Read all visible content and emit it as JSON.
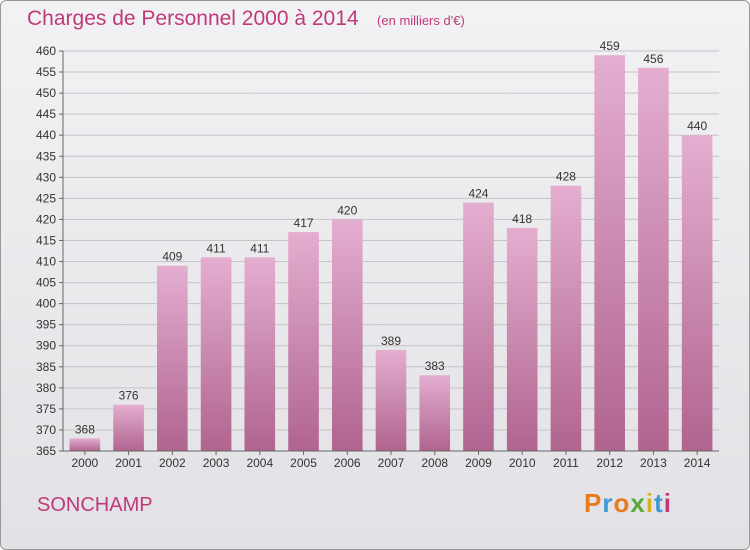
{
  "header": {
    "title": "Charges de Personnel 2000 à 2014",
    "unit": "(en milliers d'€)"
  },
  "footer": {
    "location": "SONCHAMP",
    "brand": "Proxiti",
    "brand_colors": [
      "#e87b1c",
      "#3c9ad6",
      "#e87b1c",
      "#5aa83a",
      "#d6b21c",
      "#3c9ad6",
      "#c03a7a"
    ]
  },
  "colors": {
    "bar_top": "#e4aed0",
    "bar_bottom": "#b0648f",
    "title": "#c03a7a"
  },
  "chart_data": {
    "type": "bar",
    "title": "Charges de Personnel 2000 à 2014",
    "categories": [
      "2000",
      "2001",
      "2002",
      "2003",
      "2004",
      "2005",
      "2006",
      "2007",
      "2008",
      "2009",
      "2010",
      "2011",
      "2012",
      "2013",
      "2014"
    ],
    "values": [
      368,
      376,
      409,
      411,
      411,
      417,
      420,
      389,
      383,
      424,
      418,
      428,
      459,
      456,
      440
    ],
    "ylim": [
      365,
      460
    ],
    "ytick_step": 5,
    "grid": true,
    "xlabel": "",
    "ylabel": ""
  }
}
